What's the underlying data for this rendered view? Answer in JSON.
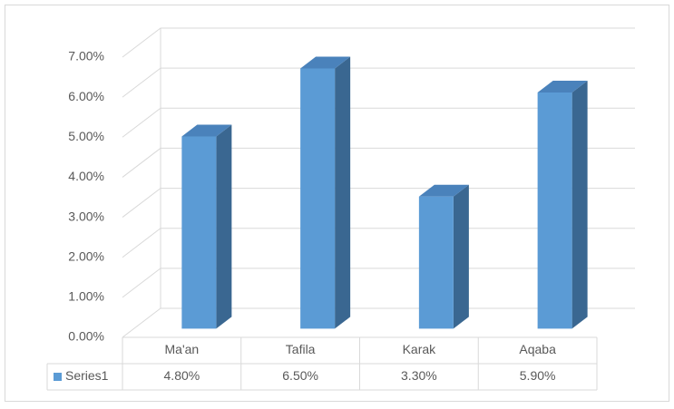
{
  "chart_data": {
    "type": "bar3d",
    "categories": [
      "Ma'an",
      "Tafila",
      "Karak",
      "Aqaba"
    ],
    "series": [
      {
        "name": "Series1",
        "color": "#5b9bd5",
        "values": [
          4.8,
          6.5,
          3.3,
          5.9
        ],
        "value_labels": [
          "4.80%",
          "6.50%",
          "3.30%",
          "5.90%"
        ]
      }
    ],
    "ylim": [
      0,
      7
    ],
    "yticks": [
      {
        "value": 0,
        "label": "0.00%"
      },
      {
        "value": 1,
        "label": "1.00%"
      },
      {
        "value": 2,
        "label": "2.00%"
      },
      {
        "value": 3,
        "label": "3.00%"
      },
      {
        "value": 4,
        "label": "4.00%"
      },
      {
        "value": 5,
        "label": "5.00%"
      },
      {
        "value": 6,
        "label": "6.00%"
      },
      {
        "value": 7,
        "label": "7.00%"
      }
    ],
    "grid": true,
    "legend": "table"
  }
}
